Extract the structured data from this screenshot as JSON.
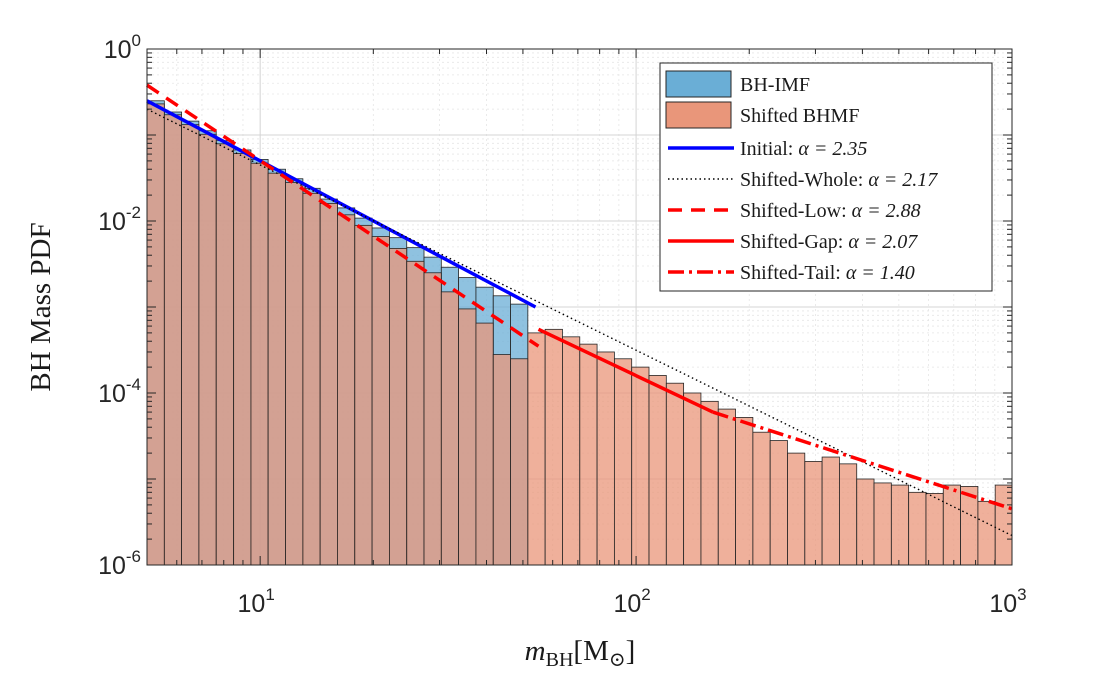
{
  "chart_data": {
    "type": "bar",
    "title": "",
    "xlabel": {
      "main": "m",
      "sub": "BH",
      "unit_open": "[M",
      "unit_sub": "⊙",
      "unit_close": "]"
    },
    "ylabel": "BH Mass PDF",
    "xscale": "log",
    "yscale": "log",
    "xlim": [
      5,
      1000
    ],
    "ylim": [
      1e-06,
      1
    ],
    "grid": true,
    "minor_grid": true,
    "legend_position": "top-right",
    "x_ticks": [
      {
        "base": "10",
        "exp": "1",
        "value": 10
      },
      {
        "base": "10",
        "exp": "2",
        "value": 100
      },
      {
        "base": "10",
        "exp": "3",
        "value": 1000
      }
    ],
    "y_ticks": [
      {
        "base": "10",
        "exp": "0",
        "value": 1
      },
      {
        "base": "10",
        "exp": "-2",
        "value": 0.01
      },
      {
        "base": "10",
        "exp": "-4",
        "value": 0.0001
      },
      {
        "base": "10",
        "exp": "-6",
        "value": 1e-06
      }
    ],
    "bin_edges": [
      5,
      5.56,
      6.18,
      6.87,
      7.64,
      8.5,
      9.45,
      10.5,
      11.68,
      12.99,
      14.44,
      16.05,
      17.85,
      19.85,
      22.07,
      24.54,
      27.28,
      30.33,
      33.72,
      37.49,
      41.69,
      46.35,
      51.53,
      57.29,
      63.7,
      70.83,
      78.75,
      87.56,
      97.35,
      108.24,
      120.34,
      133.8,
      148.77,
      165.41,
      183.91,
      204.48,
      227.35,
      252.78,
      281.06,
      312.49,
      347.45,
      386.31,
      429.51,
      477.56,
      530.97,
      590.36,
      656.39,
      729.8,
      811.43,
      902.19,
      1000
    ],
    "series": [
      {
        "name": "BH-IMF",
        "color": "#6aaed6",
        "values": [
          0.25,
          0.185,
          0.145,
          0.112,
          0.086,
          0.067,
          0.052,
          0.04,
          0.031,
          0.024,
          0.018,
          0.0142,
          0.0108,
          0.0083,
          0.0064,
          0.0049,
          0.0038,
          0.0029,
          0.0022,
          0.0017,
          0.00135,
          0.00108,
          null,
          null,
          null,
          null,
          null,
          null,
          null,
          null,
          null,
          null,
          null,
          null,
          null,
          null,
          null,
          null,
          null,
          null,
          null,
          null,
          null,
          null,
          null,
          null,
          null,
          null,
          null,
          null
        ]
      },
      {
        "name": "Shifted BHMF",
        "color": "#e9967a",
        "values": [
          0.23,
          0.172,
          0.132,
          0.102,
          0.079,
          0.061,
          0.047,
          0.036,
          0.028,
          0.021,
          0.016,
          0.0118,
          0.0089,
          0.0066,
          0.0048,
          0.0034,
          0.0025,
          0.0015,
          0.00095,
          0.00065,
          0.00028,
          0.00025,
          0.0005,
          0.00055,
          0.00045,
          0.00037,
          0.0003,
          0.00025,
          0.0002,
          0.00016,
          0.00013,
          0.0001,
          8e-05,
          6.5e-05,
          5.2e-05,
          3.5e-05,
          2.8e-05,
          2e-05,
          1.6e-05,
          1.8e-05,
          1.5e-05,
          1e-05,
          9e-06,
          8.5e-06,
          7e-06,
          6.8e-06,
          8.5e-06,
          8.2e-06,
          5.5e-06,
          8.5e-06
        ]
      }
    ],
    "lines": [
      {
        "name": "Initial: ",
        "alpha_label": "α = 2.35",
        "color": "#0000ff",
        "style": "solid",
        "x": [
          5,
          54
        ],
        "y": [
          0.25,
          0.001
        ]
      },
      {
        "name": "Shifted-Whole: ",
        "alpha_label": "α = 2.17",
        "color": "#000000",
        "style": "dotted",
        "x": [
          5,
          1000
        ],
        "y": [
          0.2,
          2.2e-06
        ]
      },
      {
        "name": "Shifted-Low: ",
        "alpha_label": "α = 2.88",
        "color": "#ff0000",
        "style": "dashed",
        "x": [
          5,
          55
        ],
        "y": [
          0.38,
          0.00035
        ]
      },
      {
        "name": "Shifted-Gap: ",
        "alpha_label": "α = 2.07",
        "color": "#ff0000",
        "style": "solid",
        "x": [
          55,
          160
        ],
        "y": [
          0.00055,
          6e-05
        ]
      },
      {
        "name": "Shifted-Tail: ",
        "alpha_label": "α = 1.40",
        "color": "#ff0000",
        "style": "dashdot",
        "x": [
          160,
          1000
        ],
        "y": [
          6e-05,
          4.5e-06
        ]
      }
    ]
  }
}
